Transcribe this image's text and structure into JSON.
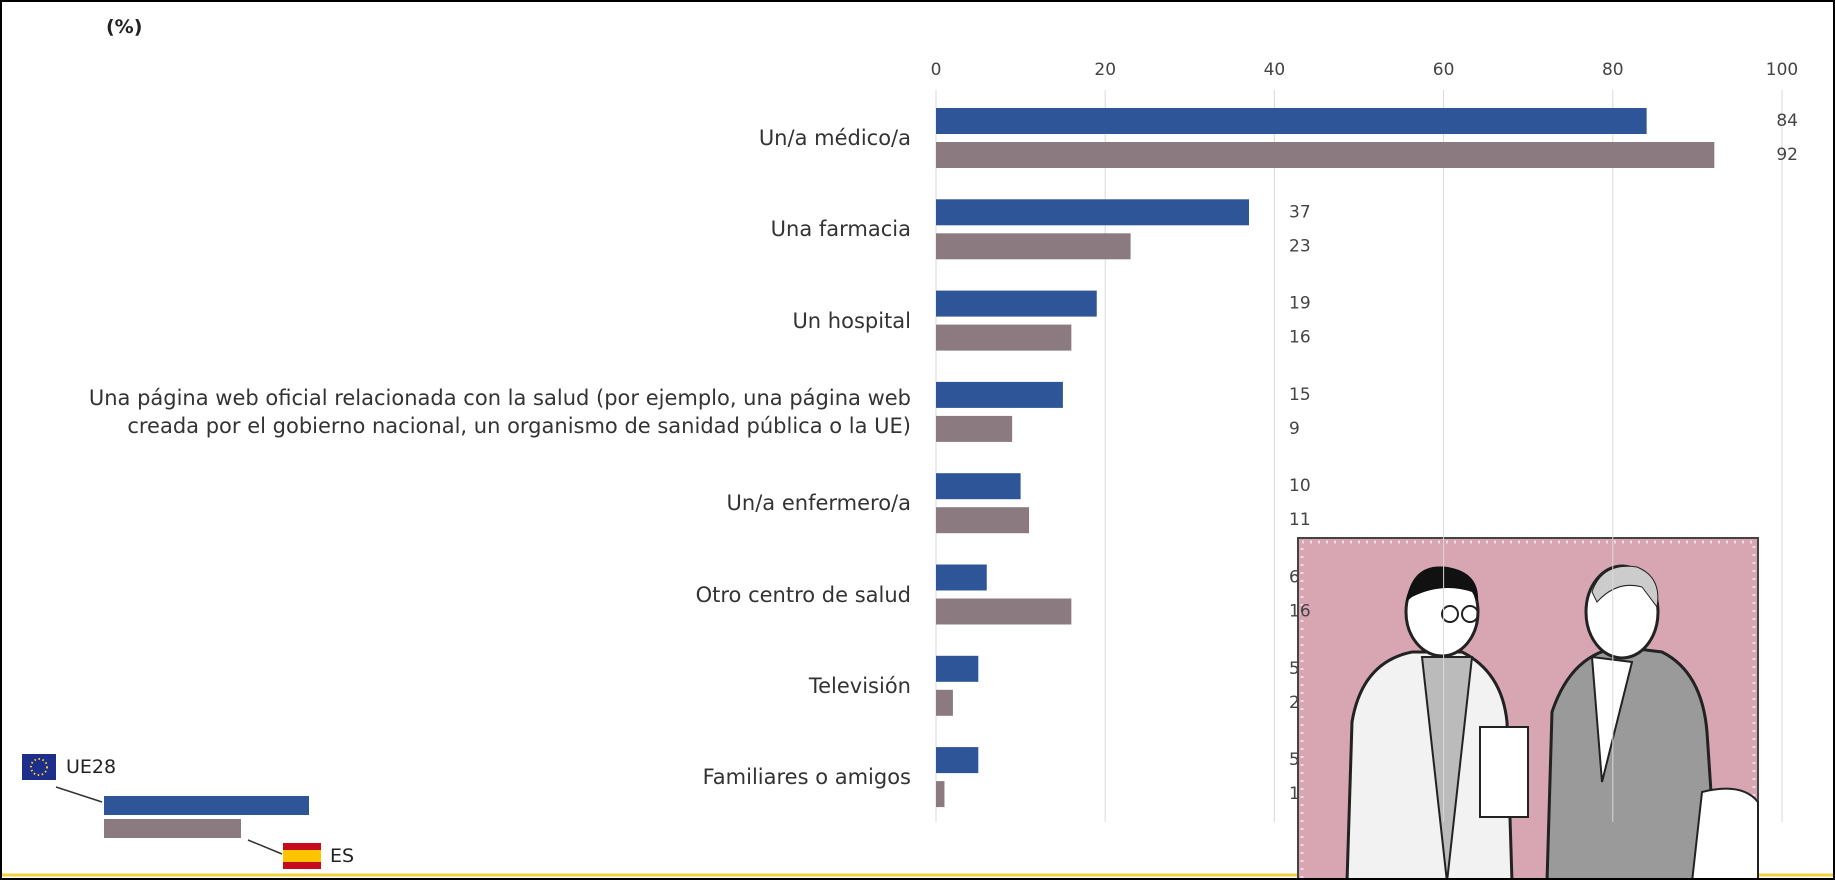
{
  "chart_data": {
    "type": "bar",
    "orientation": "horizontal",
    "unit_label": "(%)",
    "categories": [
      "Un/a médico/a",
      "Una farmacia",
      "Un hospital",
      "Una página web oficial relacionada con la salud (por ejemplo, una página web creada por el gobierno nacional, un organismo de sanidad pública o la UE)",
      "Un/a enfermero/a",
      "Otro centro de salud",
      "Televisión",
      "Familiares o amigos"
    ],
    "series": [
      {
        "name": "UE28",
        "color": "#2e5597",
        "values": [
          84,
          37,
          19,
          15,
          10,
          6,
          5,
          5
        ]
      },
      {
        "name": "ES",
        "color": "#8b7b80",
        "values": [
          92,
          23,
          16,
          9,
          11,
          16,
          2,
          1
        ]
      }
    ],
    "xlim": [
      0,
      100
    ],
    "xticks": [
      0,
      20,
      40,
      60,
      80,
      100
    ],
    "grid": true
  }
}
